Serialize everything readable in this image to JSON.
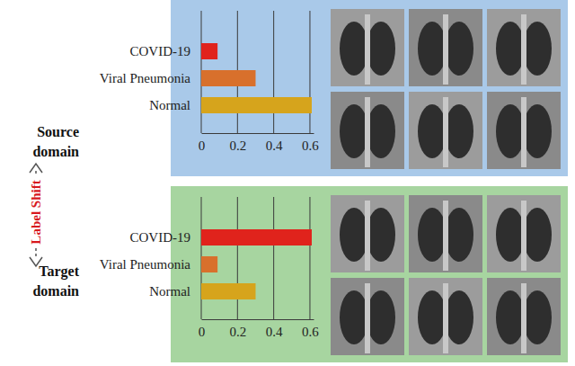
{
  "chart_data": [
    {
      "type": "bar",
      "orientation": "horizontal",
      "title": "Source domain",
      "annotations": [
        "Label Shift"
      ],
      "categories": [
        "COVID-19",
        "Viral Pneumonia",
        "Normal"
      ],
      "values": [
        0.09,
        0.3,
        0.61
      ],
      "colors": [
        "#e0231c",
        "#d8702c",
        "#d6a41c"
      ],
      "xlim": [
        0,
        0.62
      ],
      "xticks": [
        0,
        0.2,
        0.4,
        0.6
      ],
      "grid": true
    },
    {
      "type": "bar",
      "orientation": "horizontal",
      "title": "Target domain",
      "categories": [
        "COVID-19",
        "Viral Pneumonia",
        "Normal"
      ],
      "values": [
        0.61,
        0.09,
        0.3
      ],
      "colors": [
        "#e0231c",
        "#d8702c",
        "#d6a41c"
      ],
      "xlim": [
        0,
        0.62
      ],
      "xticks": [
        0,
        0.2,
        0.4,
        0.6
      ],
      "grid": true
    }
  ]
}
